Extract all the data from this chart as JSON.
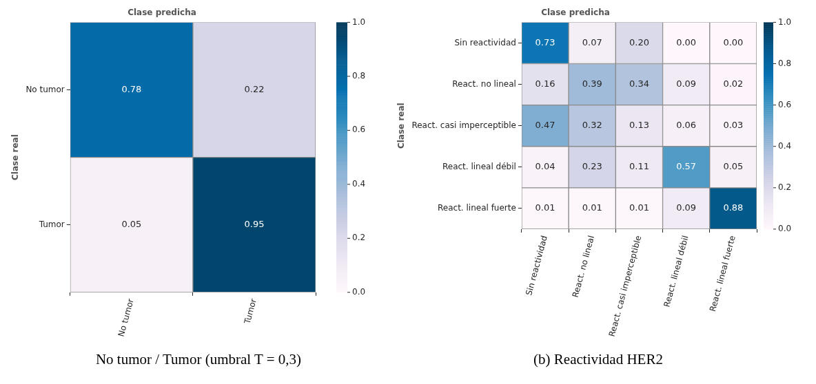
{
  "chart_data": [
    {
      "type": "heatmap",
      "title": "Clase predicha",
      "ylabel": "Clase real",
      "categories": [
        "No tumor",
        "Tumor"
      ],
      "y_categories": [
        "No tumor",
        "Tumor"
      ],
      "cells": [
        [
          0.78,
          0.22
        ],
        [
          0.05,
          0.95
        ]
      ],
      "cell_labels": [
        [
          "0.78",
          "0.22"
        ],
        [
          "0.05",
          "0.95"
        ]
      ],
      "clim": [
        0,
        1
      ],
      "cticks": [
        {
          "value": 0,
          "label": "0.0"
        },
        {
          "value": 0.2,
          "label": "0.2"
        },
        {
          "value": 0.4,
          "label": "0.4"
        },
        {
          "value": 0.6,
          "label": "0.6"
        },
        {
          "value": 0.8,
          "label": "0.8"
        },
        {
          "value": 1,
          "label": "1.0"
        }
      ],
      "data_labels": true,
      "annotations": [
        "No tumor / Tumor (umbral T = 0,3)"
      ]
    },
    {
      "type": "heatmap",
      "title": "Clase predicha",
      "ylabel": "Clase real",
      "categories": [
        "Sin reactividad",
        "React. no lineal",
        "React. casi imperceptible",
        "React. lineal débil",
        "React. lineal fuerte"
      ],
      "y_categories": [
        "Sin reactividad",
        "React. no lineal",
        "React. casi imperceptible",
        "React. lineal débil",
        "React. lineal fuerte"
      ],
      "cells": [
        [
          0.73,
          0.07,
          0.2,
          0,
          0
        ],
        [
          0.16,
          0.39,
          0.34,
          0.09,
          0.02
        ],
        [
          0.47,
          0.32,
          0.13,
          0.06,
          0.03
        ],
        [
          0.04,
          0.23,
          0.11,
          0.57,
          0.05
        ],
        [
          0.01,
          0.01,
          0.01,
          0.09,
          0.88
        ]
      ],
      "cell_labels": [
        [
          "0.73",
          "0.07",
          "0.20",
          "0.00",
          "0.00"
        ],
        [
          "0.16",
          "0.39",
          "0.34",
          "0.09",
          "0.02"
        ],
        [
          "0.47",
          "0.32",
          "0.13",
          "0.06",
          "0.03"
        ],
        [
          "0.04",
          "0.23",
          "0.11",
          "0.57",
          "0.05"
        ],
        [
          "0.01",
          "0.01",
          "0.01",
          "0.09",
          "0.88"
        ]
      ],
      "clim": [
        0,
        1
      ],
      "cticks": [
        {
          "value": 0,
          "label": "0.0"
        },
        {
          "value": 0.2,
          "label": "0.2"
        },
        {
          "value": 0.4,
          "label": "0.4"
        },
        {
          "value": 0.6,
          "label": "0.6"
        },
        {
          "value": 0.8,
          "label": "0.8"
        },
        {
          "value": 1,
          "label": "1.0"
        }
      ],
      "data_labels": true,
      "annotations": [
        "(b) Reactividad HER2"
      ]
    }
  ]
}
